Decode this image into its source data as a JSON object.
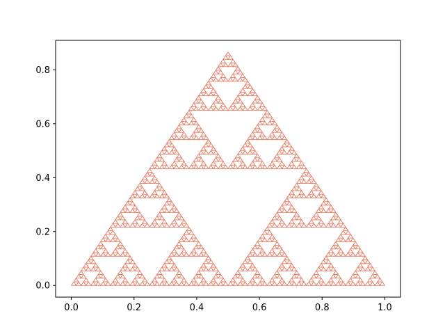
{
  "chart_data": {
    "type": "scatter",
    "title": "",
    "xlabel": "",
    "ylabel": "",
    "xlim": [
      -0.05,
      1.05
    ],
    "ylim": [
      -0.0433,
      0.9093
    ],
    "grid": false,
    "legend": "none",
    "x_ticks": [
      0.0,
      0.2,
      0.4,
      0.6,
      0.8,
      1.0
    ],
    "x_tick_labels": [
      "0.0",
      "0.2",
      "0.4",
      "0.6",
      "0.8",
      "1.0"
    ],
    "y_ticks": [
      0.0,
      0.2,
      0.4,
      0.6,
      0.8
    ],
    "y_tick_labels": [
      "0.0",
      "0.2",
      "0.4",
      "0.6",
      "0.8"
    ],
    "series": [
      {
        "color": "#e8826a",
        "shape": "Sierpinski triangle",
        "vertices": {
          "x": [
            0.0,
            1.0,
            0.5
          ],
          "y": [
            0.0,
            0.0,
            0.866
          ]
        },
        "depth": 6
      }
    ]
  }
}
